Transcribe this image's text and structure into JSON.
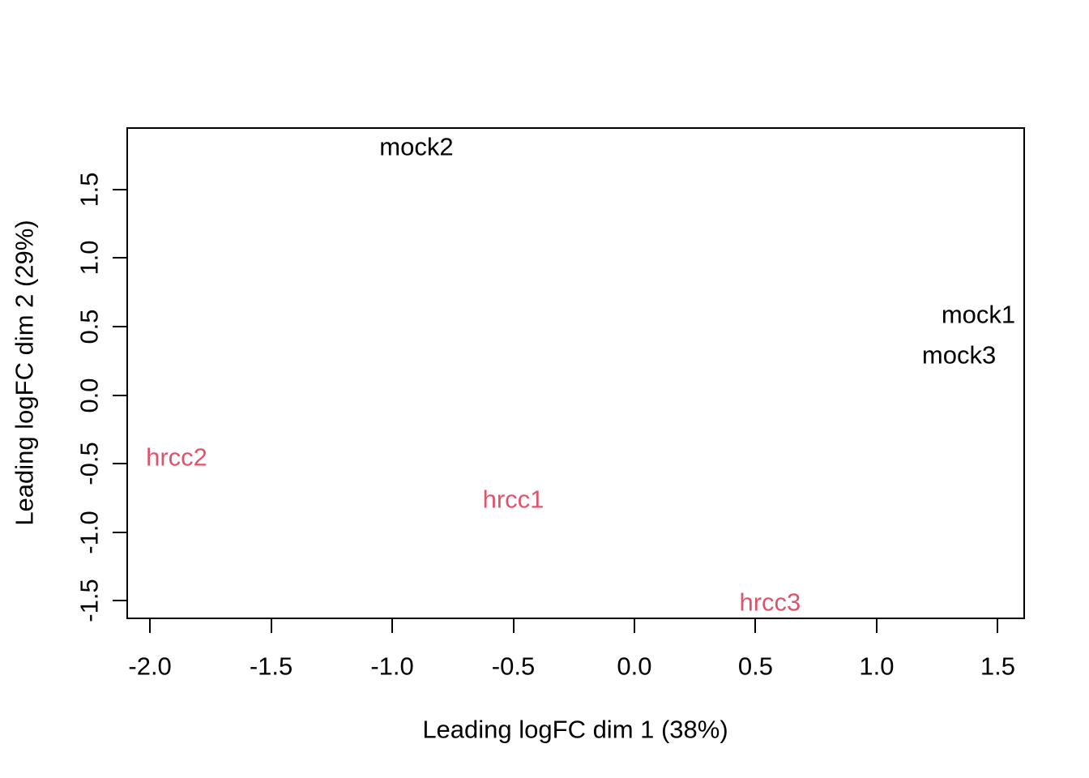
{
  "figure": {
    "kind": "R base-graphics MDS plot (plotMDS)",
    "background_color": "#ffffff",
    "axis_color": "#000000"
  },
  "chart_data": {
    "type": "scatter",
    "point_style": "text-labels",
    "title": "",
    "xlabel": "Leading logFC dim 1 (38%)",
    "ylabel": "Leading logFC dim 2 (29%)",
    "xlim": [
      -2.094,
      1.609
    ],
    "ylim": [
      -1.627,
      1.946
    ],
    "x_ticks": [
      -2.0,
      -1.5,
      -1.0,
      -0.5,
      0.0,
      0.5,
      1.0,
      1.5
    ],
    "y_ticks": [
      -1.5,
      -1.0,
      -0.5,
      0.0,
      0.5,
      1.0,
      1.5
    ],
    "grid": false,
    "legend": "none",
    "series": [
      {
        "name": "mock",
        "color": "#000000",
        "points": [
          {
            "label": "mock1",
            "x": 1.42,
            "y": 0.59
          },
          {
            "label": "mock2",
            "x": -0.9,
            "y": 1.81
          },
          {
            "label": "mock3",
            "x": 1.34,
            "y": 0.29
          }
        ]
      },
      {
        "name": "hrcc",
        "color": "#DF536B",
        "points": [
          {
            "label": "hrcc1",
            "x": -0.5,
            "y": -0.76
          },
          {
            "label": "hrcc2",
            "x": -1.89,
            "y": -0.45
          },
          {
            "label": "hrcc3",
            "x": 0.56,
            "y": -1.51
          }
        ]
      }
    ]
  }
}
